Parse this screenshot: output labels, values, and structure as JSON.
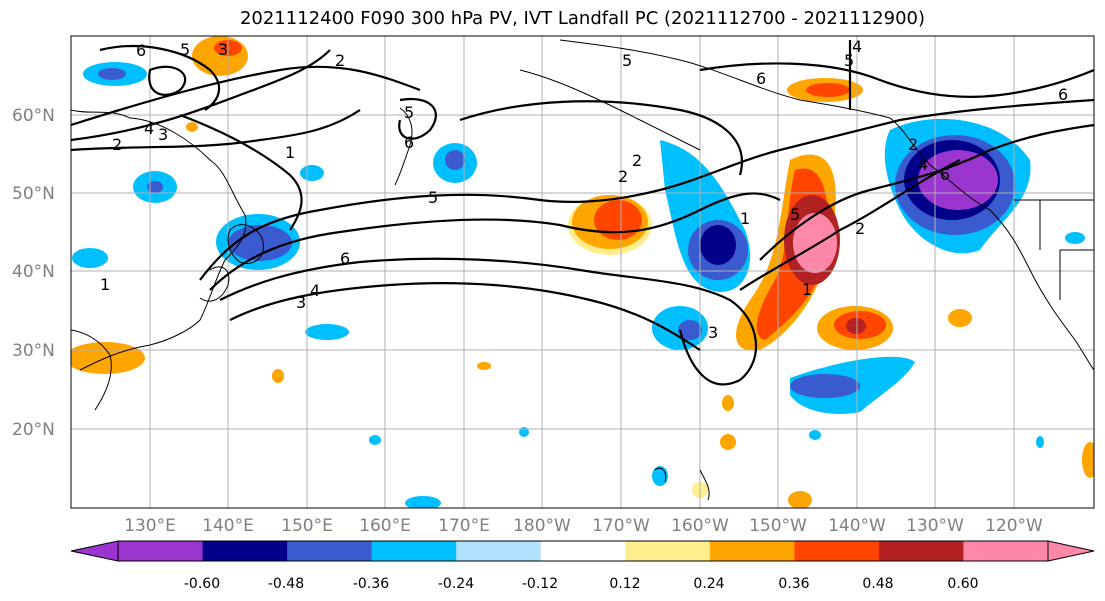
{
  "title": "2021112400 F090 300 hPa PV, IVT Landfall PC (2021112700 - 2021112900)",
  "map": {
    "lat_ticks": [
      "20°N",
      "30°N",
      "40°N",
      "50°N",
      "60°N"
    ],
    "lon_ticks": [
      "130°E",
      "140°E",
      "150°E",
      "160°E",
      "170°E",
      "180°W",
      "170°W",
      "160°W",
      "150°W",
      "140°W",
      "130°W",
      "120°W"
    ],
    "contour_labels": [
      "6",
      "5",
      "2",
      "4",
      "3",
      "2",
      "1",
      "6",
      "5",
      "5",
      "6",
      "4",
      "3",
      "1",
      "2",
      "5",
      "2",
      "1",
      "4",
      "5",
      "6",
      "6",
      "3",
      "2",
      "1",
      "5",
      "6",
      "4",
      "3",
      "2"
    ]
  },
  "colorbar": {
    "tick_labels": [
      "-0.60",
      "-0.48",
      "-0.36",
      "-0.24",
      "-0.12",
      "0.12",
      "0.24",
      "0.36",
      "0.48",
      "0.60"
    ],
    "colors": [
      "#9b35d0",
      "#00008b",
      "#3a5bd0",
      "#00bfff",
      "#b0e2ff",
      "#ffffff",
      "#ffee8c",
      "#ffa500",
      "#ff4500",
      "#b22222",
      "#ff88aa"
    ]
  }
}
